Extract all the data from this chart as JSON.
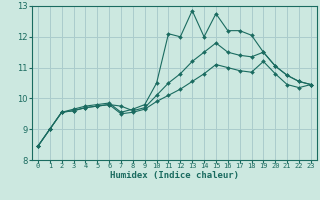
{
  "title": "",
  "xlabel": "Humidex (Indice chaleur)",
  "bg_color": "#cce8e0",
  "grid_color": "#aacccc",
  "line_color": "#1a6b60",
  "xlim": [
    -0.5,
    23.5
  ],
  "ylim": [
    8,
    13
  ],
  "xticks": [
    0,
    1,
    2,
    3,
    4,
    5,
    6,
    7,
    8,
    9,
    10,
    11,
    12,
    13,
    14,
    15,
    16,
    17,
    18,
    19,
    20,
    21,
    22,
    23
  ],
  "yticks": [
    8,
    9,
    10,
    11,
    12,
    13
  ],
  "series": [
    {
      "x": [
        0,
        1,
        2,
        3,
        4,
        5,
        6,
        7,
        8,
        9,
        10,
        11,
        12,
        13,
        14,
        15,
        16,
        17,
        18,
        19,
        20,
        21,
        22,
        23
      ],
      "y": [
        8.45,
        9.0,
        9.55,
        9.65,
        9.75,
        9.8,
        9.85,
        9.55,
        9.65,
        9.8,
        10.5,
        12.1,
        12.0,
        12.85,
        12.0,
        12.75,
        12.2,
        12.2,
        12.05,
        11.5,
        11.05,
        10.75,
        10.55,
        10.45
      ]
    },
    {
      "x": [
        0,
        1,
        2,
        3,
        4,
        5,
        6,
        7,
        8,
        9,
        10,
        11,
        12,
        13,
        14,
        15,
        16,
        17,
        18,
        19,
        20,
        21,
        22,
        23
      ],
      "y": [
        8.45,
        9.0,
        9.55,
        9.6,
        9.7,
        9.75,
        9.8,
        9.75,
        9.6,
        9.7,
        10.1,
        10.5,
        10.8,
        11.2,
        11.5,
        11.8,
        11.5,
        11.4,
        11.35,
        11.5,
        11.05,
        10.75,
        10.55,
        10.45
      ]
    },
    {
      "x": [
        0,
        1,
        2,
        3,
        4,
        5,
        6,
        7,
        8,
        9,
        10,
        11,
        12,
        13,
        14,
        15,
        16,
        17,
        18,
        19,
        20,
        21,
        22,
        23
      ],
      "y": [
        8.45,
        9.0,
        9.55,
        9.6,
        9.7,
        9.75,
        9.8,
        9.5,
        9.55,
        9.65,
        9.9,
        10.1,
        10.3,
        10.55,
        10.8,
        11.1,
        11.0,
        10.9,
        10.85,
        11.2,
        10.8,
        10.45,
        10.35,
        10.45
      ]
    }
  ]
}
